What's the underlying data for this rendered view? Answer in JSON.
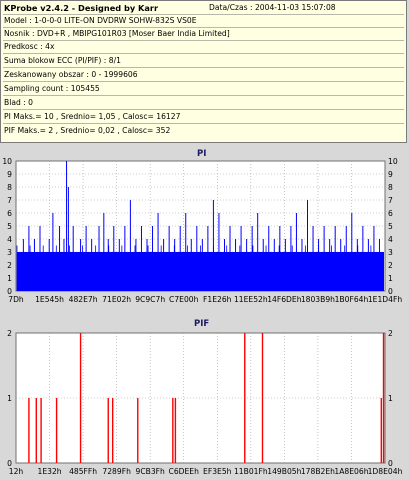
{
  "info": {
    "title": "KProbe v2.4.2 - Designed by Karr",
    "date": "Data/Czas : 2004-11-03 15:07:08",
    "lines": [
      "Model : 1-0-0-0 LITE-ON DVDRW SOHW-832S  VS0E",
      "Nosnik : DVD+R , MBIPG101R03 [Moser Baer India Limited]",
      "Predkosc : 4x",
      "Suma blokow ECC (PI/PIF) : 8/1",
      "Zeskanowany obszar : 0 - 1999606",
      "Sampling count : 105455",
      "Blad : 0",
      "PI Maks.= 10 , Srednio= 1,05 , Calosc= 16127",
      "PIF Maks.= 2 , Srednio= 0,02 , Calosc= 352"
    ]
  },
  "chart_data": [
    {
      "type": "bar",
      "title": "PI",
      "ylim": [
        0,
        10
      ],
      "yticks": [
        "0",
        "1",
        "2",
        "3",
        "4",
        "5",
        "6",
        "7",
        "8",
        "9",
        "10"
      ],
      "xticks": [
        "7Dh",
        "1E545h",
        "482E7h",
        "71E02h",
        "9C9C7h",
        "C7E00h",
        "F1E26h",
        "11EE52h",
        "14F6DEh",
        "1803B9h",
        "1B0F64h",
        "1E1D4Fh"
      ],
      "grid": true,
      "bar_color": "#0000ff",
      "background_color": "#ffffff",
      "baseline_level": 3,
      "spikes": [
        {
          "x": 0.02,
          "y": 4
        },
        {
          "x": 0.035,
          "y": 5
        },
        {
          "x": 0.05,
          "y": 4
        },
        {
          "x": 0.065,
          "y": 5
        },
        {
          "x": 0.09,
          "y": 4
        },
        {
          "x": 0.1,
          "y": 6
        },
        {
          "x": 0.118,
          "y": 5
        },
        {
          "x": 0.13,
          "y": 4
        },
        {
          "x": 0.137,
          "y": 10
        },
        {
          "x": 0.142,
          "y": 8
        },
        {
          "x": 0.155,
          "y": 5
        },
        {
          "x": 0.175,
          "y": 4
        },
        {
          "x": 0.19,
          "y": 5
        },
        {
          "x": 0.205,
          "y": 4
        },
        {
          "x": 0.225,
          "y": 5
        },
        {
          "x": 0.238,
          "y": 6
        },
        {
          "x": 0.25,
          "y": 4
        },
        {
          "x": 0.265,
          "y": 5
        },
        {
          "x": 0.28,
          "y": 4
        },
        {
          "x": 0.295,
          "y": 5
        },
        {
          "x": 0.31,
          "y": 7
        },
        {
          "x": 0.325,
          "y": 4
        },
        {
          "x": 0.34,
          "y": 5
        },
        {
          "x": 0.355,
          "y": 4
        },
        {
          "x": 0.37,
          "y": 5
        },
        {
          "x": 0.385,
          "y": 6
        },
        {
          "x": 0.4,
          "y": 4
        },
        {
          "x": 0.415,
          "y": 5
        },
        {
          "x": 0.43,
          "y": 4
        },
        {
          "x": 0.445,
          "y": 5
        },
        {
          "x": 0.46,
          "y": 6
        },
        {
          "x": 0.475,
          "y": 4
        },
        {
          "x": 0.49,
          "y": 5
        },
        {
          "x": 0.505,
          "y": 4
        },
        {
          "x": 0.52,
          "y": 5
        },
        {
          "x": 0.535,
          "y": 7
        },
        {
          "x": 0.55,
          "y": 6
        },
        {
          "x": 0.565,
          "y": 4
        },
        {
          "x": 0.58,
          "y": 5
        },
        {
          "x": 0.595,
          "y": 4
        },
        {
          "x": 0.61,
          "y": 5
        },
        {
          "x": 0.625,
          "y": 4
        },
        {
          "x": 0.64,
          "y": 5
        },
        {
          "x": 0.655,
          "y": 6
        },
        {
          "x": 0.67,
          "y": 4
        },
        {
          "x": 0.685,
          "y": 5
        },
        {
          "x": 0.7,
          "y": 4
        },
        {
          "x": 0.715,
          "y": 5
        },
        {
          "x": 0.73,
          "y": 4
        },
        {
          "x": 0.745,
          "y": 5
        },
        {
          "x": 0.76,
          "y": 6
        },
        {
          "x": 0.775,
          "y": 4
        },
        {
          "x": 0.79,
          "y": 7
        },
        {
          "x": 0.805,
          "y": 5
        },
        {
          "x": 0.82,
          "y": 4
        },
        {
          "x": 0.835,
          "y": 5
        },
        {
          "x": 0.85,
          "y": 4
        },
        {
          "x": 0.865,
          "y": 5
        },
        {
          "x": 0.88,
          "y": 4
        },
        {
          "x": 0.895,
          "y": 5
        },
        {
          "x": 0.91,
          "y": 6
        },
        {
          "x": 0.925,
          "y": 4
        },
        {
          "x": 0.94,
          "y": 5
        },
        {
          "x": 0.955,
          "y": 4
        },
        {
          "x": 0.97,
          "y": 5
        },
        {
          "x": 0.985,
          "y": 4
        }
      ]
    },
    {
      "type": "bar",
      "title": "PIF",
      "ylim": [
        0,
        2
      ],
      "yticks": [
        "0",
        "1",
        "2"
      ],
      "xticks": [
        "12h",
        "1E32h",
        "485FFh",
        "7289Fh",
        "9CB3Fh",
        "C6DEEh",
        "EF3E5h",
        "11B01Fh",
        "149B05h",
        "178B2Eh",
        "1A8E06h",
        "1D8E04h"
      ],
      "grid": true,
      "bar_color": "#ff0000",
      "background_color": "#ffffff",
      "spikes": [
        {
          "x": 0.035,
          "y": 1
        },
        {
          "x": 0.055,
          "y": 1
        },
        {
          "x": 0.068,
          "y": 1
        },
        {
          "x": 0.11,
          "y": 1
        },
        {
          "x": 0.175,
          "y": 2
        },
        {
          "x": 0.25,
          "y": 1
        },
        {
          "x": 0.262,
          "y": 1
        },
        {
          "x": 0.33,
          "y": 1
        },
        {
          "x": 0.425,
          "y": 1
        },
        {
          "x": 0.432,
          "y": 1
        },
        {
          "x": 0.62,
          "y": 2
        },
        {
          "x": 0.668,
          "y": 2
        },
        {
          "x": 0.99,
          "y": 1
        },
        {
          "x": 0.996,
          "y": 2
        }
      ]
    }
  ]
}
